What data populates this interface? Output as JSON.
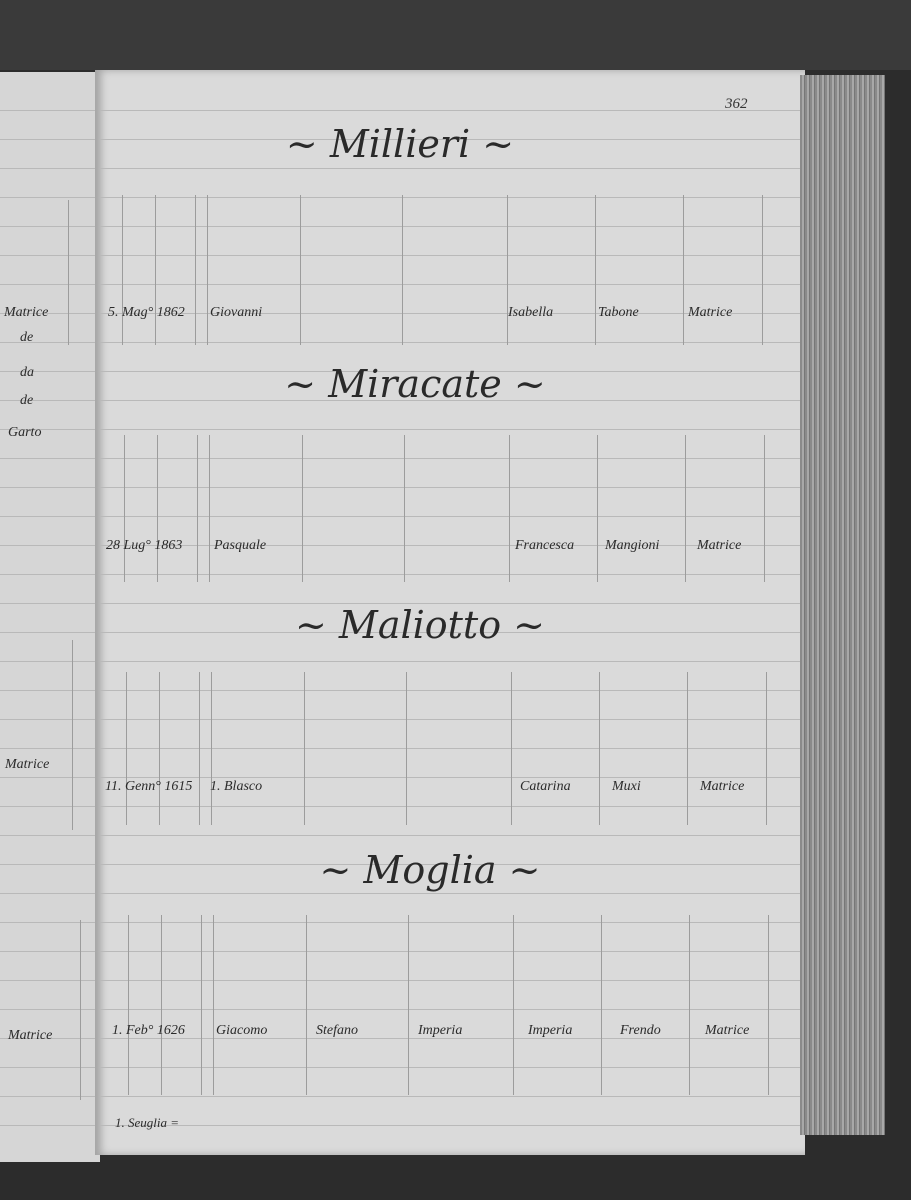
{
  "page_number": "362",
  "left_page": {
    "entries": [
      "Matrice",
      "de",
      "da",
      "de",
      "Garto",
      "Matrice",
      "Matrice"
    ]
  },
  "sections": [
    {
      "surname": "~ Millieri ~",
      "row": {
        "date": "5. Mag° 1862",
        "name": "Giovanni",
        "father": "",
        "mother_first": "",
        "mother_name": "Isabella",
        "mother_surname": "Tabone",
        "parish": "Matrice"
      }
    },
    {
      "surname": "~ Miracate ~",
      "row": {
        "date": "28 Lug° 1863",
        "name": "Pasquale",
        "father": "",
        "mother_first": "",
        "mother_name": "Francesca",
        "mother_surname": "Mangioni",
        "parish": "Matrice"
      }
    },
    {
      "surname": "~ Maliotto ~",
      "row": {
        "date": "11. Genn° 1615",
        "name": "1. Blasco",
        "father": "",
        "mother_first": "",
        "mother_name": "Catarina",
        "mother_surname": "Muxi",
        "parish": "Matrice"
      }
    },
    {
      "surname": "~ Moglia ~",
      "row": {
        "date": "1. Feb° 1626",
        "name": "Giacomo",
        "father": "Stefano",
        "mother_first": "Imperia",
        "mother_name": "Imperia",
        "mother_surname": "Frendo",
        "parish": "Matrice"
      }
    }
  ],
  "footnote": "1. Seuglia ="
}
